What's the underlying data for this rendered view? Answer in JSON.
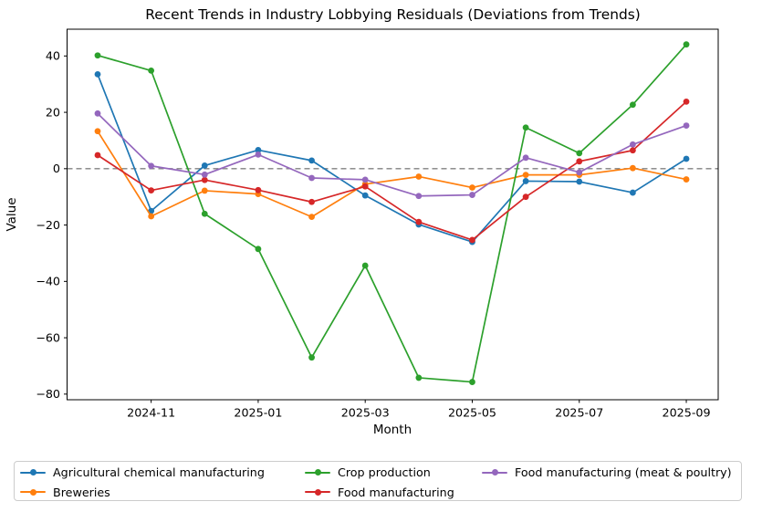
{
  "chart_data": {
    "type": "line",
    "title": "Recent Trends in Industry Lobbying Residuals (Deviations from Trends)",
    "xlabel": "Month",
    "ylabel": "Value",
    "x": [
      "2024-10",
      "2024-11",
      "2024-12",
      "2025-01",
      "2025-02",
      "2025-03",
      "2025-04",
      "2025-05",
      "2025-06",
      "2025-07",
      "2025-08",
      "2025-09"
    ],
    "x_tick_labels": [
      "2024-11",
      "2025-01",
      "2025-03",
      "2025-05",
      "2025-07",
      "2025-09"
    ],
    "x_tick_positions": [
      1,
      3,
      5,
      7,
      9,
      11
    ],
    "y_ticks": [
      40,
      20,
      0,
      -20,
      -40,
      -60,
      -80
    ],
    "ylim": [
      -82,
      49.5
    ],
    "grid": false,
    "zero_line": {
      "show": true,
      "color": "#808080",
      "style": "dashed"
    },
    "legend_position": "bottom",
    "legend_columns": 3,
    "series": [
      {
        "name": "Agricultural chemical manufacturing",
        "color": "#1f77b4",
        "values": [
          33.5,
          -15.0,
          1.1,
          6.6,
          2.9,
          -9.5,
          -19.8,
          -26.0,
          -4.4,
          -4.6,
          -8.5,
          3.5
        ]
      },
      {
        "name": "Breweries",
        "color": "#ff7f0e",
        "values": [
          13.3,
          -16.9,
          -7.8,
          -9.0,
          -17.1,
          -5.5,
          -2.8,
          -6.7,
          -2.2,
          -2.2,
          0.2,
          -3.8
        ]
      },
      {
        "name": "Crop production",
        "color": "#2ca02c",
        "values": [
          40.2,
          34.8,
          -16.0,
          -28.5,
          -67.0,
          -34.4,
          -74.2,
          -75.7,
          14.6,
          5.5,
          22.7,
          44.1
        ]
      },
      {
        "name": "Food manufacturing",
        "color": "#d62728",
        "values": [
          4.8,
          -7.7,
          -4.0,
          -7.6,
          -11.8,
          -6.3,
          -18.9,
          -25.3,
          -10.0,
          2.6,
          6.5,
          23.8
        ]
      },
      {
        "name": "Food manufacturing (meat & poultry)",
        "color": "#9467bd",
        "values": [
          19.6,
          1.0,
          -2.1,
          5.0,
          -3.3,
          -3.9,
          -9.7,
          -9.3,
          3.9,
          -1.3,
          8.6,
          15.3
        ]
      }
    ]
  }
}
